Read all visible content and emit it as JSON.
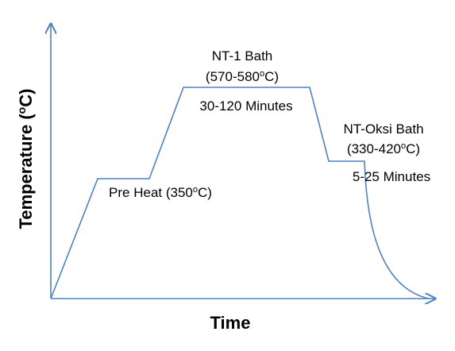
{
  "axis_labels": {
    "y": [
      "Temperature (",
      "o",
      "C)"
    ],
    "x": [
      "Time"
    ]
  },
  "stages": [
    {
      "name": [
        "Pre Heat (350",
        "o",
        "C)"
      ]
    },
    {
      "name": [
        "NT-1 Bath"
      ],
      "range": [
        "(570-580",
        "o",
        "C)"
      ],
      "duration": [
        "30-120 Minutes"
      ]
    },
    {
      "name": [
        "NT-Oksi Bath"
      ],
      "range": [
        "(330-420",
        "o",
        "C)"
      ],
      "duration": [
        "5-25 Minutes"
      ]
    }
  ]
}
